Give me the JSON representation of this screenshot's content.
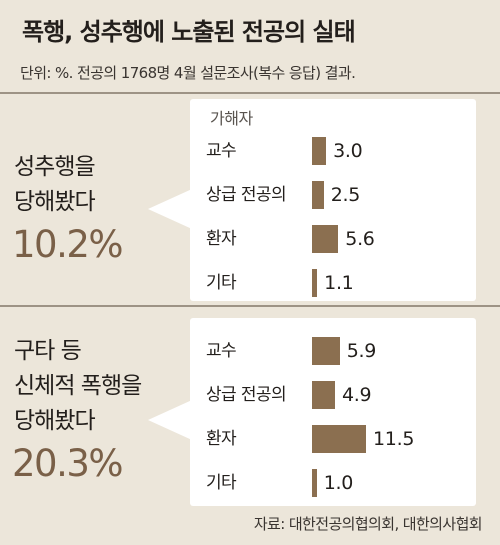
{
  "title": "폭행, 성추행에 노출된 전공의 실태",
  "subtitle": "단위: %. 전공의 1768명 4월 설문조사(복수 응답) 결과.",
  "source": "자료: 대한전공의협의회, 대한의사협회",
  "colors": {
    "bar": "#8b6f50",
    "rate": "#7a6048",
    "background": "#ece6da"
  },
  "chart_data": [
    {
      "type": "bar",
      "orientation": "horizontal",
      "group_label": [
        "성추행을",
        "당해봤다"
      ],
      "rate": "10.2%",
      "header": "가해자",
      "categories": [
        "교수",
        "상급 전공의",
        "환자",
        "기타"
      ],
      "values": [
        3.0,
        2.5,
        5.6,
        1.1
      ],
      "value_labels": [
        "3.0",
        "2.5",
        "5.6",
        "1.1"
      ],
      "xlim": [
        0,
        11.5
      ]
    },
    {
      "type": "bar",
      "orientation": "horizontal",
      "group_label": [
        "구타 등",
        "신체적 폭행을",
        "당해봤다"
      ],
      "rate": "20.3%",
      "header": "",
      "categories": [
        "교수",
        "상급 전공의",
        "환자",
        "기타"
      ],
      "values": [
        5.9,
        4.9,
        11.5,
        1.0
      ],
      "value_labels": [
        "5.9",
        "4.9",
        "11.5",
        "1.0"
      ],
      "xlim": [
        0,
        11.5
      ]
    }
  ]
}
